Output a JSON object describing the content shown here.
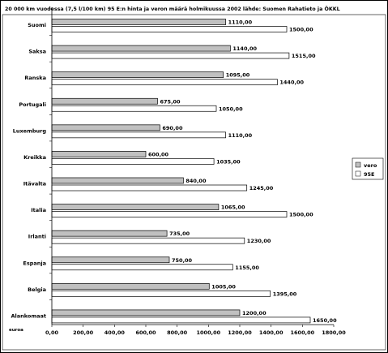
{
  "chart_data": {
    "type": "bar",
    "orientation": "horizontal",
    "title": "20 000 km vuodessa (7,5 l/100 km) 95 E:n hinta ja veron määrä holmikuussa 2002 lähde: Suomen Rahatieto ja ÖKKL",
    "unit_label": "euroa",
    "categories": [
      "Suomi",
      "Saksa",
      "Ranska",
      "Portugali",
      "Luxemburg",
      "Kreikka",
      "Itävalta",
      "Italia",
      "Irlanti",
      "Espanja",
      "Belgia",
      "Alankomaat"
    ],
    "series": [
      {
        "name": "vero",
        "color": "#c0c0c0",
        "values": [
          1110,
          1140,
          1095,
          675,
          690,
          600,
          840,
          1065,
          735,
          750,
          1005,
          1200
        ],
        "labels": [
          "1110,00",
          "1140,00",
          "1095,00",
          "675,00",
          "690,00",
          "600,00",
          "840,00",
          "1065,00",
          "735,00",
          "750,00",
          "1005,00",
          "1200,00"
        ]
      },
      {
        "name": "95E",
        "color": "#ffffff",
        "values": [
          1500,
          1515,
          1440,
          1050,
          1110,
          1035,
          1245,
          1500,
          1230,
          1155,
          1395,
          1650
        ],
        "labels": [
          "1500,00",
          "1515,00",
          "1440,00",
          "1050,00",
          "1110,00",
          "1035,00",
          "1245,00",
          "1500,00",
          "1230,00",
          "1155,00",
          "1395,00",
          "1650,00"
        ]
      }
    ],
    "xlim": [
      0,
      1800
    ],
    "xticks": [
      "0,00",
      "200,00",
      "400,00",
      "600,00",
      "800,00",
      "1000,00",
      "1200,00",
      "1400,00",
      "1600,00",
      "1800,00"
    ],
    "grid": false,
    "legend_position": "right"
  }
}
